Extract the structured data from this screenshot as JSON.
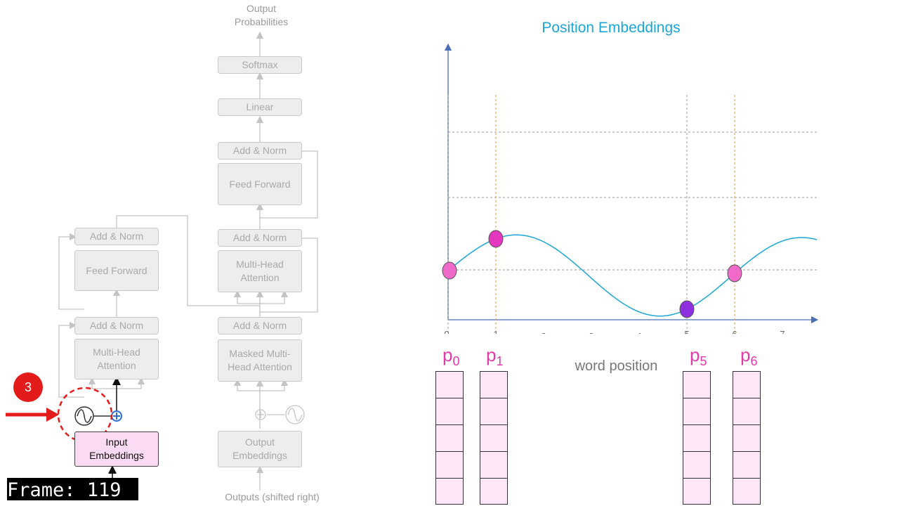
{
  "transformer": {
    "output_probabilities": "Output\nProbabilities",
    "softmax": "Softmax",
    "linear": "Linear",
    "decoder": {
      "add_norm_top": "Add & Norm",
      "feed_forward": "Feed Forward",
      "add_norm_mid": "Add & Norm",
      "multi_head_attention": "Multi-Head\nAttention",
      "add_norm_bottom": "Add & Norm",
      "masked_attention": "Masked Multi-\nHead Attention",
      "output_embeddings": "Output\nEmbeddings",
      "outputs_label": "Outputs (shifted right)"
    },
    "encoder": {
      "add_norm_top": "Add & Norm",
      "feed_forward": "Feed Forward",
      "add_norm_bottom": "Add & Norm",
      "multi_head_attention": "Multi-Head\nAttention",
      "input_embeddings": "Input\nEmbeddings"
    },
    "step_badge": "3"
  },
  "chart_data": {
    "type": "line",
    "title": "Position Embeddings",
    "xlabel": "word position",
    "x_ticks": [
      "0",
      "1",
      "2",
      "3",
      "4",
      "5",
      "6",
      "7"
    ],
    "highlighted_positions": [
      0,
      1,
      5,
      6
    ],
    "position_labels": [
      {
        "base": "p",
        "sub": "0"
      },
      {
        "base": "p",
        "sub": "1"
      },
      {
        "base": "p",
        "sub": "5"
      },
      {
        "base": "p",
        "sub": "6"
      }
    ],
    "curve_color": "#1ba6d6",
    "point_colors": [
      "#f06bc9",
      "#e536c0",
      "#8e2fe0",
      "#f06bc9"
    ]
  },
  "frame_label": "Frame: 119"
}
